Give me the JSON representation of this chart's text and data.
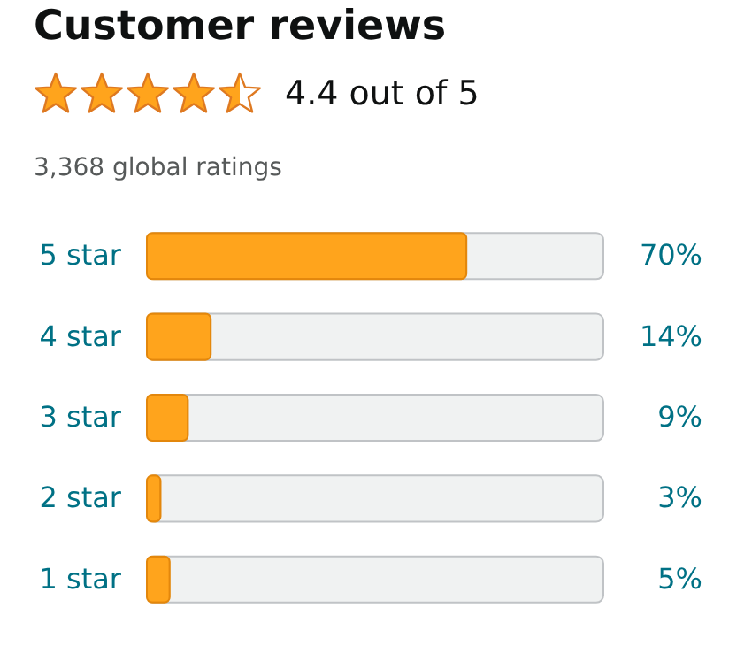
{
  "chart_data": {
    "type": "bar",
    "orientation": "horizontal",
    "title": "Customer reviews",
    "subtitle": "4.4 out of 5",
    "annotations": [
      "3,368 global ratings"
    ],
    "categories": [
      "5 star",
      "4 star",
      "3 star",
      "2 star",
      "1 star"
    ],
    "values": [
      70,
      14,
      9,
      3,
      5
    ],
    "value_labels": [
      "70%",
      "14%",
      "9%",
      "3%",
      "5%"
    ],
    "color": "#ffa41c",
    "xlim": [
      0,
      100
    ],
    "tick_labels": "y"
  }
}
